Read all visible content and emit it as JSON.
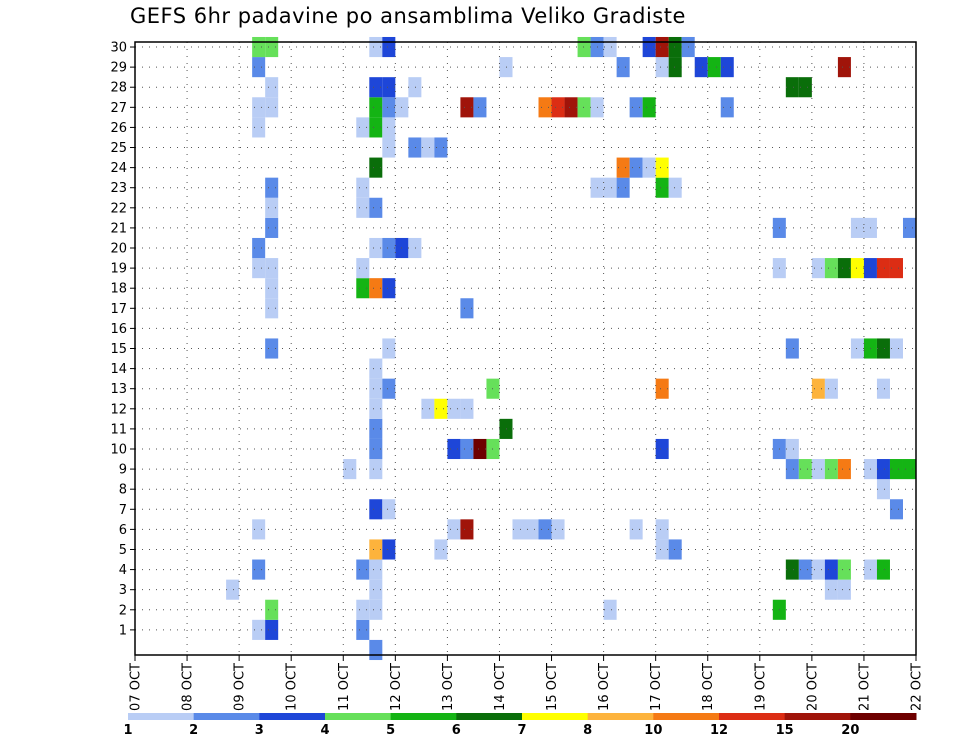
{
  "chart_data": {
    "type": "heatmap",
    "title": "GEFS 6hr padavine po ansamblima Veliko Gradiste",
    "xlabel": "",
    "ylabel": "",
    "x_tick_labels": [
      "07 OCT",
      "08 OCT",
      "09 OCT",
      "10 OCT",
      "11 OCT",
      "12 OCT",
      "13 OCT",
      "14 OCT",
      "15 OCT",
      "16 OCT",
      "17 OCT",
      "18 OCT",
      "19 OCT",
      "20 OCT",
      "21 OCT",
      "22 OCT"
    ],
    "xlim_days": [
      0,
      15
    ],
    "y_members": [
      1,
      2,
      3,
      4,
      5,
      6,
      7,
      8,
      9,
      10,
      11,
      12,
      13,
      14,
      15,
      16,
      17,
      18,
      19,
      20,
      21,
      22,
      23,
      24,
      25,
      26,
      27,
      28,
      29,
      30
    ],
    "grid": true,
    "colorbar": {
      "tick_labels": [
        "1",
        "2",
        "3",
        "4",
        "5",
        "6",
        "7",
        "8",
        "10",
        "12",
        "15",
        "20"
      ],
      "colors": [
        "#b9cdf5",
        "#5a8ae8",
        "#1e46d8",
        "#66e05a",
        "#14b414",
        "#0a6e0a",
        "#ffff00",
        "#fdb33c",
        "#f57a14",
        "#dc2d14",
        "#a0140a",
        "#6e0000"
      ]
    },
    "cells": [
      {
        "t": 2.5,
        "m": 1,
        "v": 1
      },
      {
        "t": 2.75,
        "m": 1,
        "v": 3
      },
      {
        "t": 4.5,
        "m": 1,
        "v": 2
      },
      {
        "t": 4.75,
        "m": 0,
        "v": 2
      },
      {
        "t": 2.75,
        "m": 2,
        "v": 4
      },
      {
        "t": 4.5,
        "m": 2,
        "v": 1
      },
      {
        "t": 4.75,
        "m": 2,
        "v": 1
      },
      {
        "t": 9.25,
        "m": 2,
        "v": 1
      },
      {
        "t": 12.5,
        "m": 2,
        "v": 5
      },
      {
        "t": 2.0,
        "m": 3,
        "v": 1
      },
      {
        "t": 4.75,
        "m": 3,
        "v": 1
      },
      {
        "t": 13.5,
        "m": 3,
        "v": 1
      },
      {
        "t": 13.75,
        "m": 3,
        "v": 1
      },
      {
        "t": 2.5,
        "m": 4,
        "v": 2
      },
      {
        "t": 4.5,
        "m": 4,
        "v": 2
      },
      {
        "t": 4.75,
        "m": 4,
        "v": 1
      },
      {
        "t": 12.75,
        "m": 4,
        "v": 6
      },
      {
        "t": 13.0,
        "m": 4,
        "v": 2
      },
      {
        "t": 13.25,
        "m": 4,
        "v": 1
      },
      {
        "t": 13.5,
        "m": 4,
        "v": 3
      },
      {
        "t": 13.75,
        "m": 4,
        "v": 4
      },
      {
        "t": 14.25,
        "m": 4,
        "v": 1
      },
      {
        "t": 14.5,
        "m": 4,
        "v": 5
      },
      {
        "t": 4.75,
        "m": 5,
        "v": 8
      },
      {
        "t": 5.0,
        "m": 5,
        "v": 3
      },
      {
        "t": 6.0,
        "m": 5,
        "v": 1
      },
      {
        "t": 10.25,
        "m": 5,
        "v": 1
      },
      {
        "t": 10.5,
        "m": 5,
        "v": 2
      },
      {
        "t": 2.5,
        "m": 6,
        "v": 1
      },
      {
        "t": 6.25,
        "m": 6,
        "v": 1
      },
      {
        "t": 6.5,
        "m": 6,
        "v": 15
      },
      {
        "t": 7.5,
        "m": 6,
        "v": 1
      },
      {
        "t": 7.75,
        "m": 6,
        "v": 1
      },
      {
        "t": 8.0,
        "m": 6,
        "v": 2
      },
      {
        "t": 8.25,
        "m": 6,
        "v": 1
      },
      {
        "t": 9.75,
        "m": 6,
        "v": 1
      },
      {
        "t": 10.25,
        "m": 6,
        "v": 1
      },
      {
        "t": 4.75,
        "m": 7,
        "v": 3
      },
      {
        "t": 5.0,
        "m": 7,
        "v": 1
      },
      {
        "t": 14.75,
        "m": 7,
        "v": 2
      },
      {
        "t": 14.5,
        "m": 8,
        "v": 1
      },
      {
        "t": 4.25,
        "m": 9,
        "v": 1
      },
      {
        "t": 4.75,
        "m": 9,
        "v": 1
      },
      {
        "t": 12.75,
        "m": 9,
        "v": 2
      },
      {
        "t": 13.0,
        "m": 9,
        "v": 4
      },
      {
        "t": 13.25,
        "m": 9,
        "v": 1
      },
      {
        "t": 13.5,
        "m": 9,
        "v": 4
      },
      {
        "t": 13.75,
        "m": 9,
        "v": 10
      },
      {
        "t": 14.25,
        "m": 9,
        "v": 1
      },
      {
        "t": 14.5,
        "m": 9,
        "v": 3
      },
      {
        "t": 14.75,
        "m": 9,
        "v": 5
      },
      {
        "t": 15.0,
        "m": 9,
        "v": 5
      },
      {
        "t": 4.75,
        "m": 10,
        "v": 2
      },
      {
        "t": 6.25,
        "m": 10,
        "v": 3
      },
      {
        "t": 6.5,
        "m": 10,
        "v": 2
      },
      {
        "t": 6.75,
        "m": 10,
        "v": 20
      },
      {
        "t": 7.0,
        "m": 10,
        "v": 4
      },
      {
        "t": 10.25,
        "m": 10,
        "v": 3
      },
      {
        "t": 12.5,
        "m": 10,
        "v": 2
      },
      {
        "t": 12.75,
        "m": 10,
        "v": 1
      },
      {
        "t": 4.75,
        "m": 11,
        "v": 2
      },
      {
        "t": 7.25,
        "m": 11,
        "v": 6
      },
      {
        "t": 4.75,
        "m": 12,
        "v": 1
      },
      {
        "t": 5.75,
        "m": 12,
        "v": 1
      },
      {
        "t": 6.0,
        "m": 12,
        "v": 7
      },
      {
        "t": 6.25,
        "m": 12,
        "v": 1
      },
      {
        "t": 6.5,
        "m": 12,
        "v": 1
      },
      {
        "t": 4.75,
        "m": 13,
        "v": 1
      },
      {
        "t": 5.0,
        "m": 13,
        "v": 2
      },
      {
        "t": 7.0,
        "m": 13,
        "v": 4
      },
      {
        "t": 10.25,
        "m": 13,
        "v": 10
      },
      {
        "t": 13.25,
        "m": 13,
        "v": 8
      },
      {
        "t": 13.5,
        "m": 13,
        "v": 1
      },
      {
        "t": 14.5,
        "m": 13,
        "v": 1
      },
      {
        "t": 4.75,
        "m": 14,
        "v": 1
      },
      {
        "t": 2.75,
        "m": 15,
        "v": 2
      },
      {
        "t": 5.0,
        "m": 15,
        "v": 1
      },
      {
        "t": 12.75,
        "m": 15,
        "v": 2
      },
      {
        "t": 14.0,
        "m": 15,
        "v": 1
      },
      {
        "t": 14.25,
        "m": 15,
        "v": 5
      },
      {
        "t": 14.5,
        "m": 15,
        "v": 6
      },
      {
        "t": 14.75,
        "m": 15,
        "v": 1
      },
      {
        "t": 2.75,
        "m": 17,
        "v": 1
      },
      {
        "t": 6.5,
        "m": 17,
        "v": 2
      },
      {
        "t": 2.75,
        "m": 18,
        "v": 1
      },
      {
        "t": 4.5,
        "m": 18,
        "v": 5
      },
      {
        "t": 4.75,
        "m": 18,
        "v": 10
      },
      {
        "t": 5.0,
        "m": 18,
        "v": 3
      },
      {
        "t": 2.5,
        "m": 19,
        "v": 1
      },
      {
        "t": 2.75,
        "m": 19,
        "v": 1
      },
      {
        "t": 4.5,
        "m": 19,
        "v": 1
      },
      {
        "t": 12.5,
        "m": 19,
        "v": 1
      },
      {
        "t": 13.25,
        "m": 19,
        "v": 1
      },
      {
        "t": 13.5,
        "m": 19,
        "v": 4
      },
      {
        "t": 13.75,
        "m": 19,
        "v": 6
      },
      {
        "t": 14.0,
        "m": 19,
        "v": 7
      },
      {
        "t": 14.25,
        "m": 19,
        "v": 3
      },
      {
        "t": 14.5,
        "m": 19,
        "v": 12
      },
      {
        "t": 14.75,
        "m": 19,
        "v": 12
      },
      {
        "t": 2.5,
        "m": 20,
        "v": 2
      },
      {
        "t": 4.75,
        "m": 20,
        "v": 1
      },
      {
        "t": 5.0,
        "m": 20,
        "v": 2
      },
      {
        "t": 5.25,
        "m": 20,
        "v": 3
      },
      {
        "t": 5.5,
        "m": 20,
        "v": 1
      },
      {
        "t": 2.75,
        "m": 21,
        "v": 2
      },
      {
        "t": 12.5,
        "m": 21,
        "v": 2
      },
      {
        "t": 14.0,
        "m": 21,
        "v": 1
      },
      {
        "t": 14.25,
        "m": 21,
        "v": 1
      },
      {
        "t": 15.0,
        "m": 21,
        "v": 2
      },
      {
        "t": 2.75,
        "m": 22,
        "v": 1
      },
      {
        "t": 4.5,
        "m": 22,
        "v": 1
      },
      {
        "t": 4.75,
        "m": 22,
        "v": 2
      },
      {
        "t": 2.75,
        "m": 23,
        "v": 2
      },
      {
        "t": 4.5,
        "m": 23,
        "v": 1
      },
      {
        "t": 9.0,
        "m": 23,
        "v": 1
      },
      {
        "t": 9.25,
        "m": 23,
        "v": 1
      },
      {
        "t": 9.5,
        "m": 23,
        "v": 2
      },
      {
        "t": 10.25,
        "m": 23,
        "v": 5
      },
      {
        "t": 10.5,
        "m": 23,
        "v": 1
      },
      {
        "t": 4.75,
        "m": 24,
        "v": 6
      },
      {
        "t": 9.5,
        "m": 24,
        "v": 10
      },
      {
        "t": 9.75,
        "m": 24,
        "v": 2
      },
      {
        "t": 10.0,
        "m": 24,
        "v": 1
      },
      {
        "t": 10.25,
        "m": 24,
        "v": 7
      },
      {
        "t": 5.0,
        "m": 25,
        "v": 1
      },
      {
        "t": 5.5,
        "m": 25,
        "v": 2
      },
      {
        "t": 5.75,
        "m": 25,
        "v": 1
      },
      {
        "t": 6.0,
        "m": 25,
        "v": 2
      },
      {
        "t": 2.5,
        "m": 26,
        "v": 1
      },
      {
        "t": 4.5,
        "m": 26,
        "v": 1
      },
      {
        "t": 4.75,
        "m": 26,
        "v": 5
      },
      {
        "t": 5.0,
        "m": 26,
        "v": 1
      },
      {
        "t": 2.5,
        "m": 27,
        "v": 1
      },
      {
        "t": 2.75,
        "m": 27,
        "v": 1
      },
      {
        "t": 4.75,
        "m": 27,
        "v": 5
      },
      {
        "t": 5.0,
        "m": 27,
        "v": 2
      },
      {
        "t": 5.25,
        "m": 27,
        "v": 1
      },
      {
        "t": 6.5,
        "m": 27,
        "v": 15
      },
      {
        "t": 6.75,
        "m": 27,
        "v": 2
      },
      {
        "t": 8.0,
        "m": 27,
        "v": 10
      },
      {
        "t": 8.25,
        "m": 27,
        "v": 12
      },
      {
        "t": 8.5,
        "m": 27,
        "v": 15
      },
      {
        "t": 8.75,
        "m": 27,
        "v": 4
      },
      {
        "t": 9.0,
        "m": 27,
        "v": 1
      },
      {
        "t": 9.75,
        "m": 27,
        "v": 2
      },
      {
        "t": 10.0,
        "m": 27,
        "v": 5
      },
      {
        "t": 11.5,
        "m": 27,
        "v": 2
      },
      {
        "t": 2.75,
        "m": 28,
        "v": 1
      },
      {
        "t": 4.75,
        "m": 28,
        "v": 3
      },
      {
        "t": 5.0,
        "m": 28,
        "v": 3
      },
      {
        "t": 5.5,
        "m": 28,
        "v": 1
      },
      {
        "t": 12.75,
        "m": 28,
        "v": 6
      },
      {
        "t": 13.0,
        "m": 28,
        "v": 6
      },
      {
        "t": 2.5,
        "m": 29,
        "v": 2
      },
      {
        "t": 7.25,
        "m": 29,
        "v": 1
      },
      {
        "t": 9.5,
        "m": 29,
        "v": 2
      },
      {
        "t": 10.25,
        "m": 29,
        "v": 1
      },
      {
        "t": 10.5,
        "m": 29,
        "v": 6
      },
      {
        "t": 11.0,
        "m": 29,
        "v": 3
      },
      {
        "t": 11.25,
        "m": 29,
        "v": 5
      },
      {
        "t": 11.5,
        "m": 29,
        "v": 3
      },
      {
        "t": 13.75,
        "m": 29,
        "v": 15
      },
      {
        "t": 2.5,
        "m": 30,
        "v": 4
      },
      {
        "t": 2.75,
        "m": 30,
        "v": 4
      },
      {
        "t": 4.75,
        "m": 30,
        "v": 1
      },
      {
        "t": 5.0,
        "m": 30,
        "v": 3
      },
      {
        "t": 8.75,
        "m": 30,
        "v": 4
      },
      {
        "t": 9.0,
        "m": 30,
        "v": 2
      },
      {
        "t": 9.25,
        "m": 30,
        "v": 1
      },
      {
        "t": 10.0,
        "m": 30,
        "v": 3
      },
      {
        "t": 10.25,
        "m": 30,
        "v": 15
      },
      {
        "t": 10.5,
        "m": 30,
        "v": 6
      },
      {
        "t": 10.75,
        "m": 30,
        "v": 2
      }
    ]
  }
}
